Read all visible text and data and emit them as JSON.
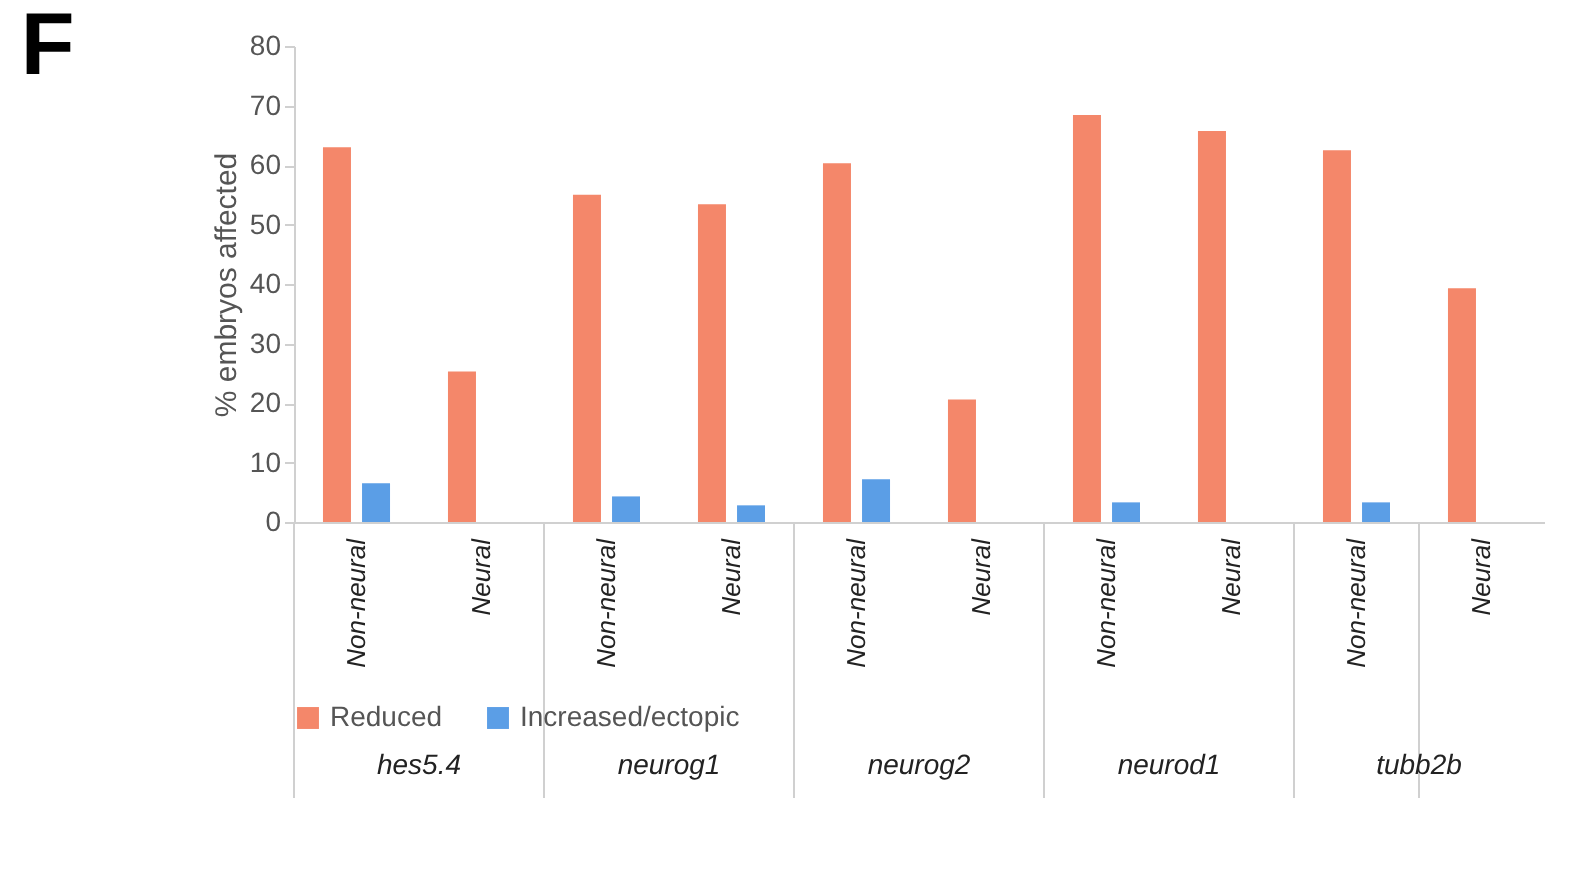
{
  "chart_data": {
    "type": "bar",
    "title": "F",
    "ylabel": "% embryos affected",
    "categories": [
      "Non-neural",
      "Neural",
      "Non-neural",
      "Neural",
      "Non-neural",
      "Neural",
      "Non-neural",
      "Neural",
      "Non-neural",
      "Neural"
    ],
    "annotations": [
      "hes5.4",
      "neurog1",
      "neurog2",
      "neurod1",
      "tubb2b"
    ],
    "series": [
      {
        "name": "Reduced",
        "color": "#f4876a",
        "values": [
          63.0,
          25.3,
          55.0,
          53.4,
          60.3,
          20.6,
          68.4,
          65.7,
          62.5,
          39.3
        ]
      },
      {
        "name": "Increased/ectopic",
        "color": "#5b9ee6",
        "values": [
          6.5,
          null,
          4.3,
          2.8,
          7.2,
          null,
          3.3,
          null,
          3.3,
          null
        ]
      }
    ],
    "ylim": [
      0,
      80
    ],
    "yticks": [
      0,
      10,
      20,
      30,
      40,
      50,
      60,
      70,
      80
    ],
    "grid": false,
    "legend": "bottom"
  }
}
